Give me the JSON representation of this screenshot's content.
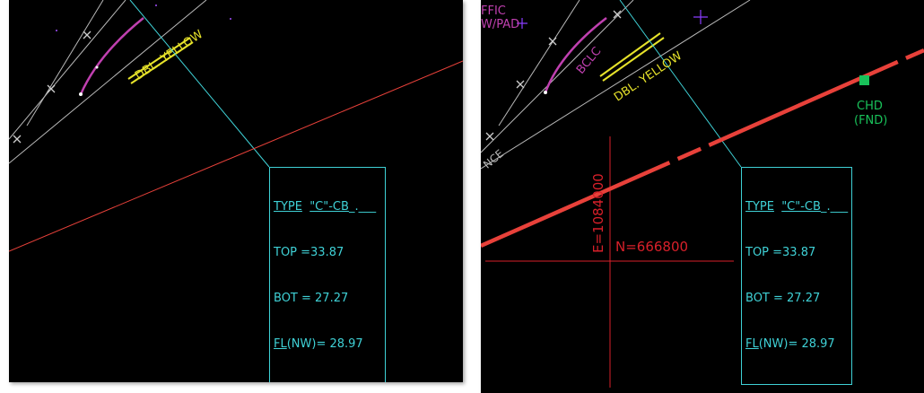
{
  "left_view": {
    "road_label": "DBL. YELLOW",
    "note": {
      "type_prefix": "TYPE",
      "type_value": "\"C\"-CB",
      "type_suffix": "_.___",
      "top": "TOP =33.87",
      "bot": "BOT = 27.27",
      "fl_prefix": "FL",
      "fl_rest": "(NW)= 28.97"
    }
  },
  "right_view": {
    "road_label": "DBL. YELLOW",
    "curve_label": "BCLC",
    "corner_text_1": "FFIC",
    "corner_text_2": "W/PAD",
    "edge_text": "NCE",
    "chd_label_1": "CHD",
    "chd_label_2": "(FND)",
    "easting": "E=1084000",
    "northing": "N=666800",
    "note": {
      "type_prefix": "TYPE",
      "type_value": "\"C\"-CB",
      "type_suffix": "_.___",
      "top": "TOP =33.87",
      "bot": "BOT = 27.27",
      "fl_prefix": "FL",
      "fl_rest": "(NW)= 28.97"
    }
  },
  "colors": {
    "background": "#000000",
    "leader": "#3fd1d6",
    "property_line": "#e8413a",
    "grid_tick": "#d8202a",
    "yellow_stripe": "#e6e22a",
    "curb_curve": "#c040b0",
    "chd_marker": "#19c25a"
  }
}
